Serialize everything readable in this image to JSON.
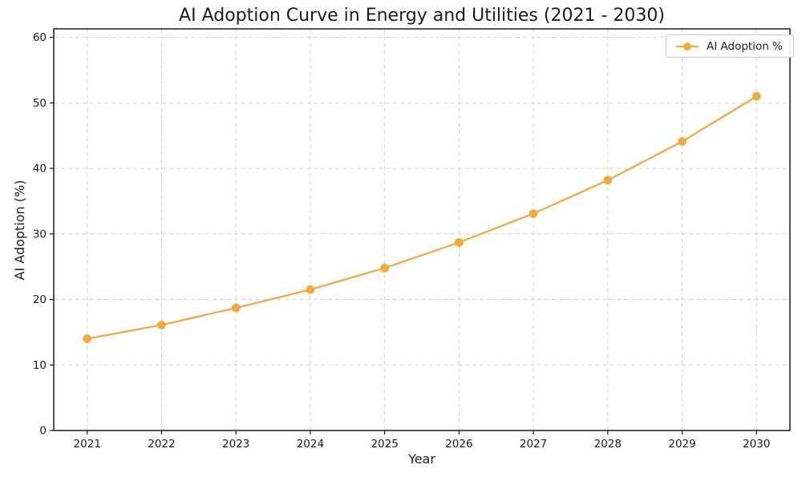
{
  "chart_data": {
    "type": "line",
    "title": "AI Adoption Curve in Energy and Utilities (2021 - 2030)",
    "xlabel": "Year",
    "ylabel": "AI Adoption (%)",
    "x": [
      2021,
      2022,
      2023,
      2024,
      2025,
      2026,
      2027,
      2028,
      2029,
      2030
    ],
    "series": [
      {
        "name": "AI Adoption %",
        "values": [
          14.0,
          16.1,
          18.7,
          21.5,
          24.8,
          28.7,
          33.1,
          38.2,
          44.1,
          51.0
        ],
        "color": "#F2A93E",
        "marker": "circle"
      }
    ],
    "xlim": [
      2020.55,
      2030.45
    ],
    "ylim": [
      0,
      61.3
    ],
    "yticks": [
      0,
      10,
      20,
      30,
      40,
      50,
      60
    ],
    "grid": true,
    "grid_style": "dashed",
    "legend": {
      "position": "upper-right",
      "label": "AI Adoption %"
    }
  },
  "style": {
    "line_color": "#F2A93E",
    "grid_color": "#d2d2d2",
    "spine_color": "#1a1a1a",
    "tick_color": "#1a1a1a",
    "text_color": "#1c1c1c",
    "legend_border": "#c9c9c9",
    "legend_bg": "#ffffff"
  }
}
